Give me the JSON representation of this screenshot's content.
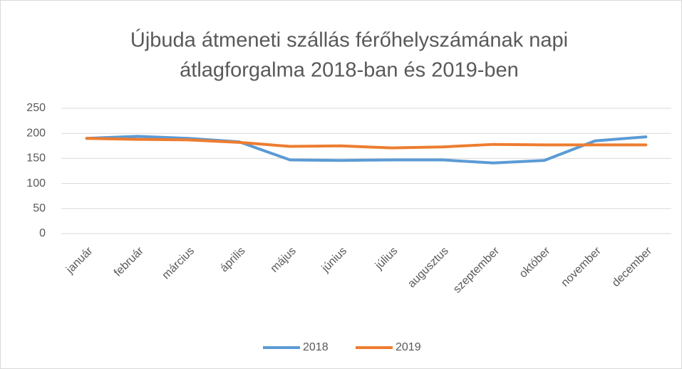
{
  "chart_data": {
    "type": "line",
    "title": [
      "Újbuda átmeneti szállás férőhelyszámának napi",
      "átlagforgalma 2018-ban és 2019-ben"
    ],
    "categories": [
      "január",
      "február",
      "március",
      "április",
      "május",
      "június",
      "július",
      "augusztus",
      "szeptember",
      "október",
      "november",
      "december"
    ],
    "series": [
      {
        "name": "2018",
        "color": "#5b9bd5",
        "values": [
          190,
          194,
          190,
          183,
          147,
          146,
          147,
          147,
          141,
          146,
          185,
          193
        ]
      },
      {
        "name": "2019",
        "color": "#ed7d31",
        "values": [
          190,
          188,
          187,
          182,
          174,
          175,
          171,
          173,
          178,
          177,
          177,
          177
        ]
      }
    ],
    "ylim": [
      0,
      250
    ],
    "yticks": [
      0,
      50,
      100,
      150,
      200,
      250
    ],
    "grid": true,
    "legend": "bottom"
  }
}
